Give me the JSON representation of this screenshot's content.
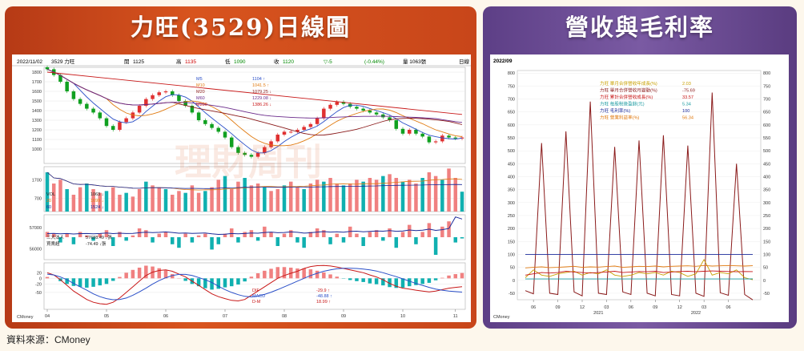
{
  "left": {
    "title": "力旺(3529)日線圖",
    "info": {
      "date": "2022/11/02",
      "name": "3529 力旺",
      "open_label": "開",
      "open": "1125",
      "high_label": "高",
      "high": "1135",
      "low_label": "低",
      "low": "1090",
      "close_label": "收",
      "close": "1120",
      "change": "▽-5",
      "pct": "(-0.44%)",
      "vol": "量 1063張",
      "freq": "日線"
    },
    "ma_legend": [
      {
        "name": "M5",
        "value": "1104",
        "arrow": "↑",
        "color": "#2a4fc8"
      },
      {
        "name": "M10",
        "value": "1041.5",
        "arrow": "↑",
        "color": "#e07a10"
      },
      {
        "name": "M20",
        "value": "1079.25",
        "arrow": "↓",
        "color": "#8a1a1a"
      },
      {
        "name": "M60",
        "value": "1229.08",
        "arrow": "↓",
        "color": "#6a2a8a"
      },
      {
        "name": "M200",
        "value": "1386.26",
        "arrow": "↓",
        "color": "#c81818"
      }
    ],
    "vol_legend": [
      {
        "name": "VOL",
        "value": "1063",
        "arrow": "↓"
      },
      {
        "name": "20",
        "value": "1699",
        "arrow": "↓"
      },
      {
        "name": "60",
        "value": "1524",
        "arrow": "↓"
      }
    ],
    "inst_legend": [
      {
        "name": "三大法人",
        "value": "57688.49",
        "arrow": "↓張"
      },
      {
        "name": "買賣超",
        "value": "-74.49",
        "arrow": "↓張"
      }
    ],
    "macd_legend": [
      {
        "name": "DIF",
        "value": "-29.9",
        "arrow": "↑",
        "color": "#c81818"
      },
      {
        "name": "MACD",
        "value": "-48.88",
        "arrow": "↑",
        "color": "#2a4fc8"
      },
      {
        "name": "D-M",
        "value": "18.99",
        "arrow": "↑",
        "color": "#c81818"
      }
    ],
    "footer": "CMoney",
    "watermark": "理財周刊"
  },
  "right": {
    "title": "營收與毛利率",
    "date": "2022/09",
    "legend": [
      {
        "label": "力旺 單月合併營收年成長(%)",
        "value": "2.03",
        "color": "#c8a000"
      },
      {
        "label": "力旺 單月合併營收月變動(%)",
        "value": "-75.69",
        "color": "#8a1a1a"
      },
      {
        "label": "力旺 累計合併營收成長(%)",
        "value": "33.57",
        "color": "#c81818"
      },
      {
        "label": "力旺 每股稅後盈餘(元)",
        "value": "5.34",
        "color": "#1a9aa0"
      },
      {
        "label": "力旺 毛利率(%)",
        "value": "100",
        "color": "#1a2a9a"
      },
      {
        "label": "力旺 營業利益率(%)",
        "value": "56.34",
        "color": "#e07a10"
      }
    ],
    "footer": "CMoney"
  },
  "source": "資料來源：CMoney",
  "chart_data": [
    {
      "type": "line",
      "title": "力旺(3529)日線圖",
      "price": {
        "yticks": [
          1000,
          1100,
          1200,
          1300,
          1400,
          1500,
          1600,
          1700,
          1800
        ],
        "ylim": [
          850,
          1850
        ],
        "close": [
          1830,
          1770,
          1700,
          1600,
          1520,
          1470,
          1420,
          1380,
          1320,
          1240,
          1200,
          1280,
          1320,
          1380,
          1450,
          1520,
          1560,
          1590,
          1600,
          1560,
          1500,
          1450,
          1380,
          1300,
          1260,
          1220,
          1180,
          1120,
          1020,
          960,
          940,
          920,
          960,
          1020,
          1080,
          1150,
          1180,
          1180,
          1200,
          1230,
          1260,
          1320,
          1420,
          1460,
          1490,
          1470,
          1440,
          1420,
          1400,
          1380,
          1360,
          1330,
          1300,
          1210,
          1160,
          1200,
          1160,
          1130,
          1070,
          1080,
          1140,
          1120,
          1110,
          1120
        ]
      },
      "volume": {
        "yticks": [
          700,
          1700
        ],
        "values": [
          2100,
          1500,
          1700,
          1200,
          900,
          1300,
          1500,
          1200,
          1000,
          1100,
          1300,
          900,
          1000,
          800,
          1200,
          1600,
          1400,
          1300,
          1200,
          900,
          1100,
          1000,
          1400,
          1000,
          1100,
          1300,
          1700,
          1900,
          1200,
          1600,
          1800,
          1400,
          1500,
          1300,
          1100,
          1200,
          1400,
          1600,
          1300,
          1200,
          1500,
          1700,
          1600,
          1800,
          1500,
          1400,
          1500,
          1700,
          1600,
          1800,
          1700,
          1900,
          2000,
          1800,
          1600,
          1700,
          1500,
          1800,
          2100,
          1900,
          1700,
          2300,
          1800,
          1063
        ]
      },
      "institutional": {
        "yticks": [
          56000,
          57000
        ],
        "ylim": [
          55500,
          57600
        ],
        "buy_sell": [
          0.3,
          0.2,
          -0.3,
          0.2,
          -0.4,
          0.3,
          0.1,
          -0.2,
          0.2,
          0.4,
          -0.5,
          0.3,
          -0.2,
          0.1,
          0.5,
          0.4,
          -0.3,
          0.2,
          0.3,
          -0.4,
          -0.6,
          0.2,
          -0.3,
          0.1,
          0.2,
          -0.7,
          -0.4,
          0.2,
          0.5,
          -0.3,
          0.3,
          0.4,
          -0.2,
          0.6,
          0.3,
          -0.5,
          0.2,
          0.4,
          -0.3,
          -0.6,
          0.3,
          0.5,
          0.4,
          -0.4,
          0.2,
          -0.3,
          0.6,
          0.2,
          -0.5,
          0.3,
          0.4,
          -0.2,
          0.5,
          -0.6,
          0.3,
          0.7,
          -0.4,
          0.3,
          0.8,
          -1.0,
          0.6,
          0.9,
          -0.3,
          -0.07
        ]
      },
      "macd": {
        "yticks": [
          -50,
          -20,
          0,
          20
        ],
        "ylim": [
          -110,
          55
        ],
        "dif": [
          20,
          12,
          -5,
          -25,
          -45,
          -60,
          -75,
          -85,
          -90,
          -92,
          -85,
          -70,
          -50,
          -30,
          -10,
          10,
          22,
          28,
          30,
          25,
          15,
          5,
          -10,
          -25,
          -40,
          -55,
          -65,
          -72,
          -78,
          -80,
          -75,
          -60,
          -45,
          -30,
          -15,
          0,
          10,
          18,
          25,
          35,
          42,
          45,
          46,
          44,
          40,
          35,
          30,
          25,
          20,
          12,
          5,
          -5,
          -18,
          -28,
          -35,
          -38,
          -42,
          -45,
          -48,
          -45,
          -40,
          -35,
          -32,
          -29.9
        ],
        "macd": [
          15,
          12,
          5,
          -5,
          -18,
          -30,
          -42,
          -55,
          -65,
          -72,
          -76,
          -75,
          -70,
          -60,
          -48,
          -35,
          -20,
          -8,
          2,
          10,
          14,
          14,
          10,
          3,
          -5,
          -15,
          -28,
          -40,
          -50,
          -58,
          -64,
          -66,
          -63,
          -57,
          -49,
          -40,
          -30,
          -20,
          -10,
          0,
          10,
          18,
          25,
          30,
          34,
          36,
          36,
          35,
          33,
          30,
          26,
          20,
          13,
          6,
          -2,
          -10,
          -18,
          -25,
          -32,
          -38,
          -42,
          -45,
          -47,
          -48.88
        ]
      },
      "x_ticks": [
        "04",
        "05",
        "06",
        "07",
        "08",
        "09",
        "10",
        "11"
      ]
    },
    {
      "type": "line",
      "title": "營收與毛利率",
      "yticks": [
        -50,
        0,
        50,
        100,
        150,
        200,
        250,
        300,
        350,
        400,
        450,
        500,
        550,
        600,
        650,
        700,
        750,
        800
      ],
      "ylim": [
        -75,
        810
      ],
      "x_ticks": [
        "06",
        "09",
        "12",
        "03",
        "06",
        "09",
        "12",
        "03",
        "06"
      ],
      "year_labels": [
        "2021",
        "2022"
      ],
      "series": [
        {
          "name": "力旺 單月合併營收月變動(%)",
          "values": [
            -40,
            -52,
            530,
            -50,
            -55,
            575,
            -45,
            -60,
            690,
            -50,
            -55,
            515,
            -45,
            -55,
            540,
            -50,
            -60,
            560,
            -55,
            -60,
            520,
            -50,
            -62,
            725,
            -48,
            -58,
            450,
            -55,
            -75.69
          ]
        },
        {
          "name": "力旺 單月合併營收年成長(%)",
          "values": [
            10,
            40,
            20,
            15,
            25,
            30,
            35,
            20,
            30,
            25,
            40,
            20,
            15,
            20,
            30,
            25,
            30,
            20,
            35,
            30,
            15,
            25,
            80,
            20,
            30,
            25,
            40,
            10,
            2.03
          ]
        },
        {
          "name": "力旺 累計合併營收成長(%)",
          "values": [
            20,
            25,
            30,
            28,
            30,
            35,
            32,
            30,
            28,
            30,
            32,
            35,
            30,
            32,
            34,
            33,
            35,
            30,
            32,
            34,
            35,
            33,
            35,
            36,
            35,
            34,
            33,
            34,
            33.57
          ]
        },
        {
          "name": "力旺 每股稅後盈餘(元)",
          "values": [
            5,
            5,
            5,
            5,
            5,
            5,
            5,
            5,
            5,
            5,
            5,
            5,
            5,
            5,
            5,
            5,
            5,
            5,
            5,
            5,
            5,
            5,
            5,
            5,
            5,
            5,
            5,
            5,
            5.34
          ]
        },
        {
          "name": "力旺 毛利率(%)",
          "values": [
            100,
            100,
            100,
            100,
            100,
            100,
            100,
            100,
            100,
            100,
            100,
            100,
            100,
            100,
            100,
            100,
            100,
            100,
            100,
            100,
            100,
            100,
            100,
            100,
            100,
            100,
            100,
            100,
            100
          ]
        },
        {
          "name": "力旺 營業利益率(%)",
          "values": [
            48,
            50,
            52,
            49,
            50,
            52,
            54,
            50,
            52,
            51,
            53,
            55,
            50,
            52,
            54,
            53,
            55,
            52,
            54,
            55,
            56,
            54,
            57,
            55,
            56,
            57,
            56,
            55,
            56.34
          ]
        }
      ]
    }
  ]
}
